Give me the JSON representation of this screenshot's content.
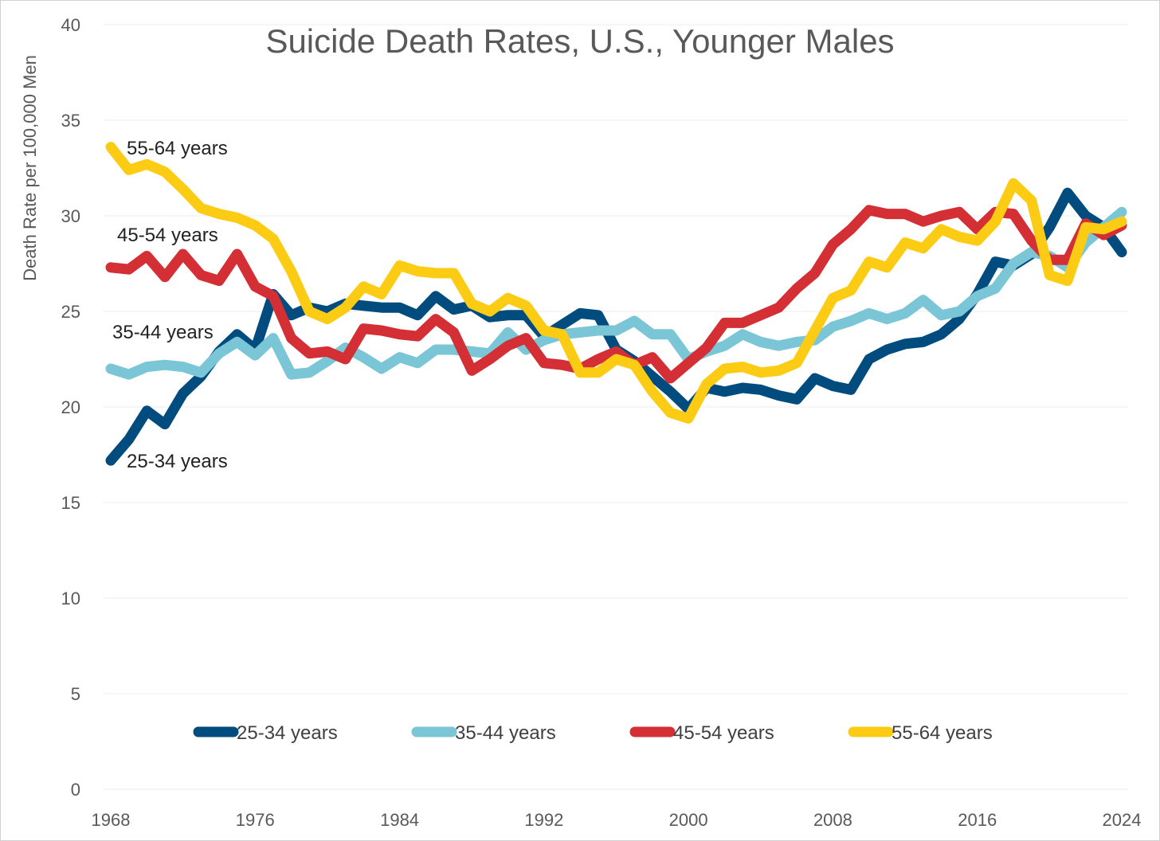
{
  "chart_data": {
    "type": "line",
    "title": "Suicide Death Rates, U.S., Younger Males",
    "xlabel": "",
    "ylabel": "Death Rate per 100,000 Men",
    "xlim": [
      1968,
      2024
    ],
    "ylim": [
      0,
      40
    ],
    "grid": true,
    "x_ticks": [
      "1968",
      "1976",
      "1984",
      "1992",
      "2000",
      "2008",
      "2016",
      "2024"
    ],
    "y_ticks": [
      "0",
      "5",
      "10",
      "15",
      "20",
      "25",
      "30",
      "35",
      "40"
    ],
    "legend_position": "bottom",
    "x": [
      1968,
      1969,
      1970,
      1971,
      1972,
      1973,
      1974,
      1975,
      1976,
      1977,
      1978,
      1979,
      1980,
      1981,
      1982,
      1983,
      1984,
      1985,
      1986,
      1987,
      1988,
      1989,
      1990,
      1991,
      1992,
      1993,
      1994,
      1995,
      1996,
      1997,
      1998,
      1999,
      2000,
      2001,
      2002,
      2003,
      2004,
      2005,
      2006,
      2007,
      2008,
      2009,
      2010,
      2011,
      2012,
      2013,
      2014,
      2015,
      2016,
      2017,
      2018,
      2019,
      2020,
      2021,
      2022,
      2023,
      2024
    ],
    "series": [
      {
        "name": "25-34 years",
        "color": "#004c7f",
        "label": "25-34 years",
        "values": [
          17.2,
          18.3,
          19.8,
          19.1,
          20.7,
          21.6,
          22.9,
          23.8,
          23.0,
          25.9,
          24.8,
          25.2,
          25.0,
          25.4,
          25.3,
          25.2,
          25.2,
          24.8,
          25.8,
          25.1,
          25.3,
          24.7,
          24.8,
          24.8,
          23.7,
          24.3,
          24.9,
          24.8,
          23.0,
          22.4,
          21.6,
          20.8,
          19.9,
          21.0,
          20.8,
          21.0,
          20.9,
          20.6,
          20.4,
          21.5,
          21.1,
          20.9,
          22.5,
          23.0,
          23.3,
          23.4,
          23.8,
          24.6,
          25.9,
          27.6,
          27.4,
          28.0,
          29.4,
          31.2,
          30.0,
          29.4,
          28.1
        ]
      },
      {
        "name": "35-44 years",
        "color": "#7ac5d6",
        "label": "35-44 years",
        "values": [
          22.0,
          21.7,
          22.1,
          22.2,
          22.1,
          21.8,
          22.8,
          23.4,
          22.7,
          23.6,
          21.7,
          21.8,
          22.4,
          23.1,
          22.6,
          22.0,
          22.6,
          22.3,
          23.0,
          23.0,
          22.9,
          22.8,
          23.9,
          23.0,
          23.5,
          23.8,
          23.9,
          24.0,
          24.0,
          24.5,
          23.8,
          23.8,
          22.5,
          22.9,
          23.2,
          23.8,
          23.4,
          23.2,
          23.4,
          23.5,
          24.2,
          24.5,
          24.9,
          24.6,
          24.9,
          25.6,
          24.8,
          25.0,
          25.8,
          26.2,
          27.5,
          28.1,
          27.9,
          27.3,
          28.6,
          29.4,
          30.2
        ]
      },
      {
        "name": "45-54 years",
        "color": "#d32f35",
        "label": "45-54 years",
        "values": [
          27.3,
          27.2,
          27.9,
          26.8,
          28.0,
          26.9,
          26.6,
          28.0,
          26.3,
          25.8,
          23.6,
          22.8,
          22.9,
          22.5,
          24.1,
          24.0,
          23.8,
          23.7,
          24.6,
          23.9,
          21.9,
          22.5,
          23.2,
          23.6,
          22.3,
          22.2,
          22.0,
          22.5,
          22.9,
          22.2,
          22.6,
          21.5,
          22.3,
          23.1,
          24.4,
          24.4,
          24.8,
          25.2,
          26.2,
          27.0,
          28.5,
          29.3,
          30.3,
          30.1,
          30.1,
          29.7,
          30.0,
          30.2,
          29.3,
          30.2,
          30.1,
          28.7,
          27.7,
          27.7,
          29.6,
          29.0,
          29.5
        ]
      },
      {
        "name": "55-64 years",
        "color": "#fccc14",
        "label": "55-64 years",
        "values": [
          33.6,
          32.4,
          32.7,
          32.3,
          31.4,
          30.4,
          30.1,
          29.9,
          29.5,
          28.8,
          27.1,
          25.0,
          24.6,
          25.2,
          26.3,
          25.9,
          27.4,
          27.1,
          27.0,
          27.0,
          25.4,
          25.0,
          25.7,
          25.3,
          24.0,
          23.8,
          21.8,
          21.8,
          22.5,
          22.2,
          20.8,
          19.7,
          19.4,
          21.2,
          22.0,
          22.1,
          21.8,
          21.9,
          22.3,
          24.0,
          25.7,
          26.1,
          27.6,
          27.3,
          28.6,
          28.3,
          29.3,
          28.9,
          28.7,
          29.7,
          31.7,
          30.8,
          26.9,
          26.6,
          29.4,
          29.3,
          29.7
        ]
      }
    ]
  }
}
